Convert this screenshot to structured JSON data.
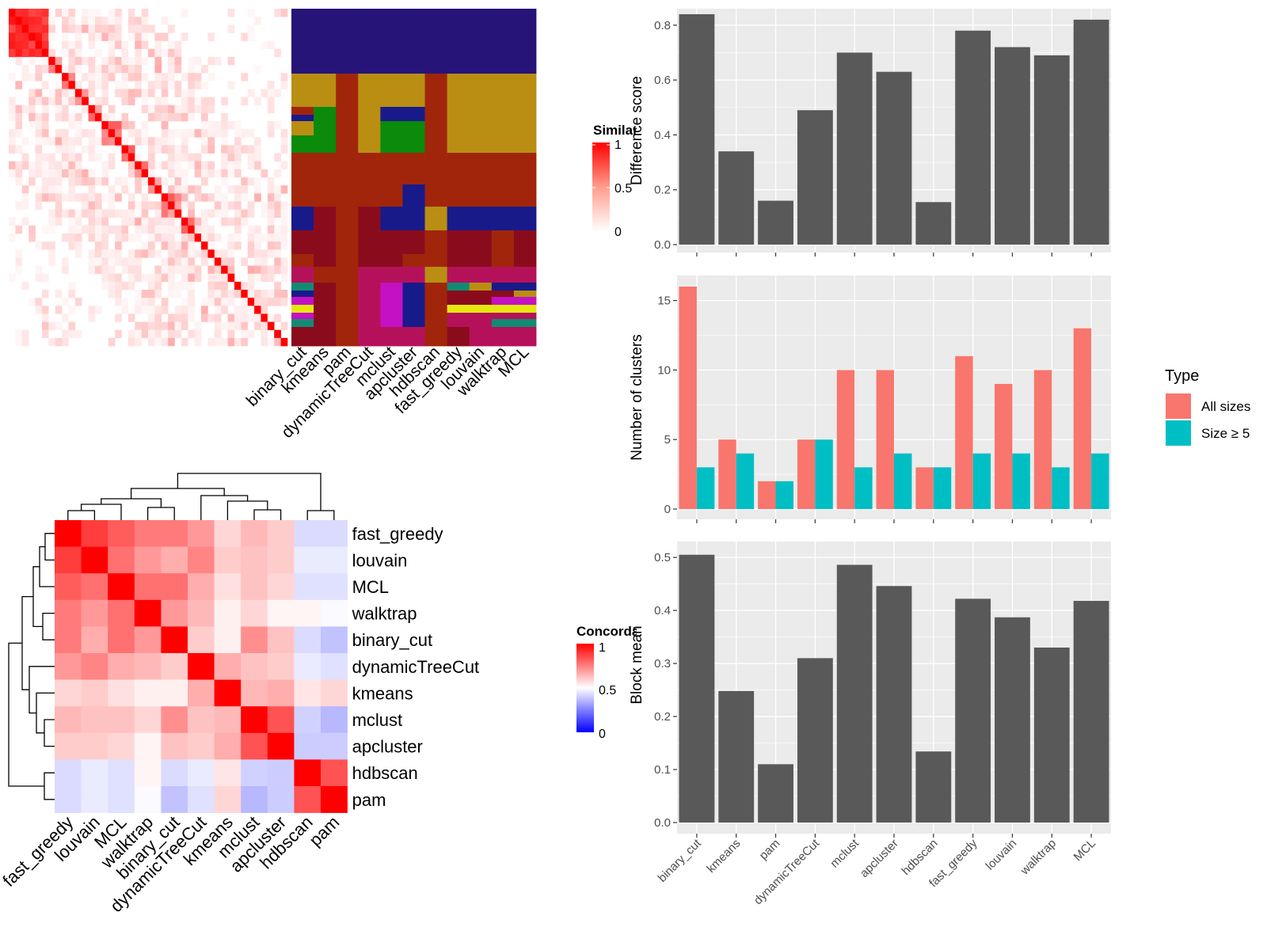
{
  "colors": {
    "panel_bg": "#ebebeb",
    "grid": "#ffffff",
    "bar_dark": "#595959",
    "all_sizes": "#f8766d",
    "size_ge5": "#00bfc4",
    "heat_high": "#ff0000",
    "heat_mid": "#ffffff",
    "heat_low": "#0000ff"
  },
  "heatmap_similarity": {
    "legend_title": "Similarity",
    "legend_ticks": [
      "1",
      "0.5",
      "0"
    ],
    "note": "cell-by-cell similarity matrix among samples (values not individually labeled)"
  },
  "cluster_assignments": {
    "methods": [
      "binary_cut",
      "kmeans",
      "pam",
      "dynamicTreeCut",
      "mclust",
      "apcluster",
      "hdbscan",
      "fast_greedy",
      "louvain",
      "walktrap",
      "MCL"
    ]
  },
  "chart_data": [
    {
      "type": "heatmap",
      "name": "concordance",
      "legend_title": "Concordance",
      "legend_ticks": [
        "1",
        "0.5",
        "0"
      ],
      "row_labels": [
        "fast_greedy",
        "louvain",
        "MCL",
        "walktrap",
        "binary_cut",
        "dynamicTreeCut",
        "kmeans",
        "mclust",
        "apcluster",
        "hdbscan",
        "pam"
      ],
      "col_labels": [
        "fast_greedy",
        "louvain",
        "MCL",
        "walktrap",
        "binary_cut",
        "dynamicTreeCut",
        "kmeans",
        "mclust",
        "apcluster",
        "hdbscan",
        "pam"
      ],
      "values": [
        [
          1.0,
          0.88,
          0.82,
          0.76,
          0.76,
          0.7,
          0.58,
          0.64,
          0.6,
          0.43,
          0.43
        ],
        [
          0.88,
          1.0,
          0.78,
          0.7,
          0.66,
          0.74,
          0.6,
          0.62,
          0.6,
          0.46,
          0.46
        ],
        [
          0.82,
          0.78,
          1.0,
          0.78,
          0.78,
          0.66,
          0.56,
          0.62,
          0.58,
          0.44,
          0.44
        ],
        [
          0.76,
          0.7,
          0.78,
          1.0,
          0.7,
          0.64,
          0.53,
          0.58,
          0.52,
          0.52,
          0.49
        ],
        [
          0.76,
          0.66,
          0.78,
          0.7,
          1.0,
          0.6,
          0.53,
          0.72,
          0.62,
          0.43,
          0.38
        ],
        [
          0.7,
          0.74,
          0.66,
          0.64,
          0.6,
          1.0,
          0.66,
          0.62,
          0.6,
          0.46,
          0.44
        ],
        [
          0.58,
          0.6,
          0.56,
          0.53,
          0.53,
          0.66,
          1.0,
          0.64,
          0.66,
          0.55,
          0.58
        ],
        [
          0.64,
          0.62,
          0.62,
          0.58,
          0.72,
          0.62,
          0.64,
          1.0,
          0.84,
          0.41,
          0.36
        ],
        [
          0.6,
          0.6,
          0.58,
          0.52,
          0.62,
          0.6,
          0.66,
          0.84,
          1.0,
          0.4,
          0.4
        ],
        [
          0.43,
          0.46,
          0.44,
          0.52,
          0.43,
          0.46,
          0.55,
          0.41,
          0.4,
          1.0,
          0.84
        ],
        [
          0.43,
          0.46,
          0.44,
          0.49,
          0.38,
          0.44,
          0.58,
          0.36,
          0.4,
          0.84,
          1.0
        ]
      ]
    },
    {
      "type": "bar",
      "name": "difference",
      "categories": [
        "binary_cut",
        "kmeans",
        "pam",
        "dynamicTreeCut",
        "mclust",
        "apcluster",
        "hdbscan",
        "fast_greedy",
        "louvain",
        "walktrap",
        "MCL"
      ],
      "values": [
        0.84,
        0.34,
        0.16,
        0.49,
        0.7,
        0.63,
        0.155,
        0.78,
        0.72,
        0.69,
        0.82
      ],
      "ylabel": "Difference score",
      "ylim": [
        0,
        0.86
      ],
      "yticks": [
        0.0,
        0.2,
        0.4,
        0.6,
        0.8
      ],
      "grid": true
    },
    {
      "type": "bar",
      "name": "clusters",
      "categories": [
        "binary_cut",
        "kmeans",
        "pam",
        "dynamicTreeCut",
        "mclust",
        "apcluster",
        "hdbscan",
        "fast_greedy",
        "louvain",
        "walktrap",
        "MCL"
      ],
      "series": [
        {
          "name": "All sizes",
          "values": [
            16,
            5,
            2,
            5,
            10,
            10,
            3,
            11,
            9,
            10,
            13
          ]
        },
        {
          "name": "Size ≥ 5",
          "values": [
            3,
            4,
            2,
            5,
            3,
            4,
            3,
            4,
            4,
            3,
            4
          ]
        }
      ],
      "ylabel": "Number of clusters",
      "ylim": [
        0,
        16.8
      ],
      "yticks": [
        0,
        5,
        10,
        15
      ],
      "legend_title": "Type",
      "legend_position": "right",
      "grid": true
    },
    {
      "type": "bar",
      "name": "blockmean",
      "categories": [
        "binary_cut",
        "kmeans",
        "pam",
        "dynamicTreeCut",
        "mclust",
        "apcluster",
        "hdbscan",
        "fast_greedy",
        "louvain",
        "walktrap",
        "MCL"
      ],
      "values": [
        0.505,
        0.248,
        0.11,
        0.31,
        0.486,
        0.446,
        0.134,
        0.422,
        0.387,
        0.33,
        0.418
      ],
      "ylabel": "Block mean",
      "ylim": [
        0,
        0.53
      ],
      "yticks": [
        0.0,
        0.1,
        0.2,
        0.3,
        0.4,
        0.5
      ],
      "grid": true
    }
  ]
}
